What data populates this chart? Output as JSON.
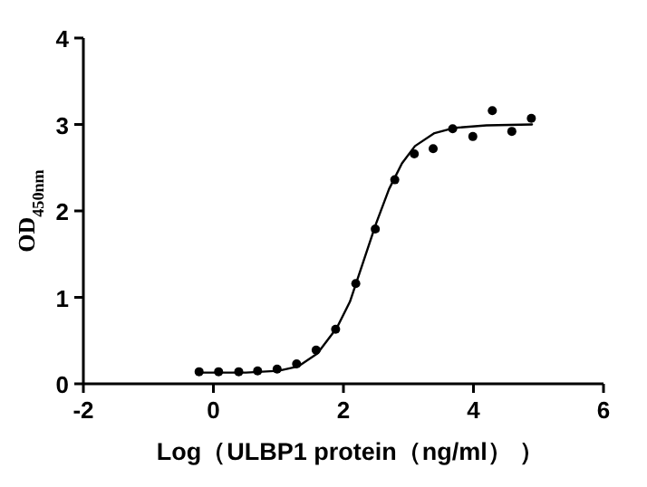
{
  "chart_data": {
    "type": "scatter",
    "xlabel": "Log（ULBP1 protein（ng/ml） ）",
    "ylabel": "OD$_{450nm}$",
    "xlim": [
      -2,
      6
    ],
    "xticks": [
      -2,
      0,
      2,
      4,
      6
    ],
    "ylim": [
      0,
      4
    ],
    "yticks": [
      0,
      1,
      2,
      3,
      4
    ],
    "grid": false,
    "marker": "circle",
    "series": [
      {
        "color": "#000000",
        "x": [
          -0.22,
          0.08,
          0.39,
          0.68,
          0.98,
          1.28,
          1.58,
          1.88,
          2.19,
          2.49,
          2.79,
          3.09,
          3.38,
          3.68,
          3.99,
          4.29,
          4.59,
          4.89
        ],
        "values": [
          0.14,
          0.14,
          0.14,
          0.15,
          0.17,
          0.23,
          0.39,
          0.63,
          1.16,
          1.79,
          2.36,
          2.66,
          2.72,
          2.95,
          2.86,
          3.16,
          2.92,
          3.07
        ]
      },
      {
        "type": "line",
        "color": "#000000",
        "marker": "none",
        "line_style": "solid",
        "x": [
          -0.22,
          0.5,
          1.0,
          1.3,
          1.6,
          1.9,
          2.1,
          2.3,
          2.5,
          2.7,
          2.9,
          3.1,
          3.4,
          3.7,
          4.2,
          4.9
        ],
        "values": [
          0.13,
          0.13,
          0.15,
          0.2,
          0.35,
          0.65,
          0.95,
          1.4,
          1.85,
          2.25,
          2.55,
          2.75,
          2.9,
          2.96,
          2.99,
          3.0
        ]
      }
    ]
  }
}
